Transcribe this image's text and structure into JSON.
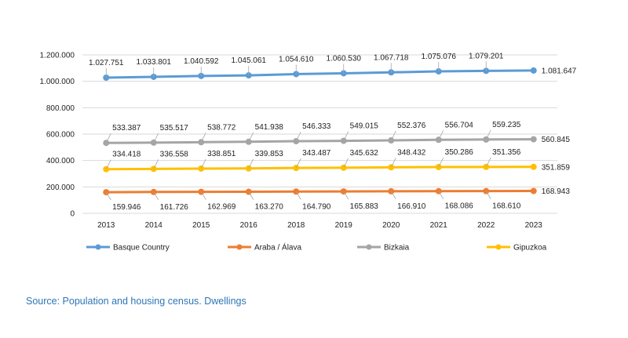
{
  "chart_data": {
    "type": "line",
    "categories": [
      "2013",
      "2014",
      "2015",
      "2016",
      "2018",
      "2019",
      "2020",
      "2021",
      "2022",
      "2023"
    ],
    "ylim": [
      0,
      1200000
    ],
    "yticks": [
      "0",
      "200.000",
      "400.000",
      "600.000",
      "800.000",
      "1.000.000",
      "1.200.000"
    ],
    "grid": true,
    "legend_position": "bottom",
    "series": [
      {
        "name": "Basque Country",
        "color": "#5b9bd5",
        "values": [
          1027751,
          1033801,
          1040592,
          1045061,
          1054610,
          1060530,
          1067718,
          1075076,
          1079201,
          1081647
        ],
        "labels": [
          "1.027.751",
          "1.033.801",
          "1.040.592",
          "1.045.061",
          "1.054.610",
          "1.060.530",
          "1.067.718",
          "1.075.076",
          "1.079.201",
          "1.081.647"
        ]
      },
      {
        "name": "Araba / Álava",
        "color": "#ed7d31",
        "values": [
          159946,
          161726,
          162969,
          163270,
          164790,
          165883,
          166910,
          168086,
          168610,
          168943
        ],
        "labels": [
          "159.946",
          "161.726",
          "162.969",
          "163.270",
          "164.790",
          "165.883",
          "166.910",
          "168.086",
          "168.610",
          "168.943"
        ]
      },
      {
        "name": "Bizkaia",
        "color": "#a5a5a5",
        "values": [
          533387,
          535517,
          538772,
          541938,
          546333,
          549015,
          552376,
          556704,
          559235,
          560845
        ],
        "labels": [
          "533.387",
          "535.517",
          "538.772",
          "541.938",
          "546.333",
          "549.015",
          "552.376",
          "556.704",
          "559.235",
          "560.845"
        ]
      },
      {
        "name": "Gipuzkoa",
        "color": "#ffc000",
        "values": [
          334418,
          336558,
          338851,
          339853,
          343487,
          345632,
          348432,
          350286,
          351356,
          351859
        ],
        "labels": [
          "334.418",
          "336.558",
          "338.851",
          "339.853",
          "343.487",
          "345.632",
          "348.432",
          "350.286",
          "351.356",
          "351.859"
        ]
      }
    ]
  },
  "source": "Source: Population and housing census. Dwellings"
}
